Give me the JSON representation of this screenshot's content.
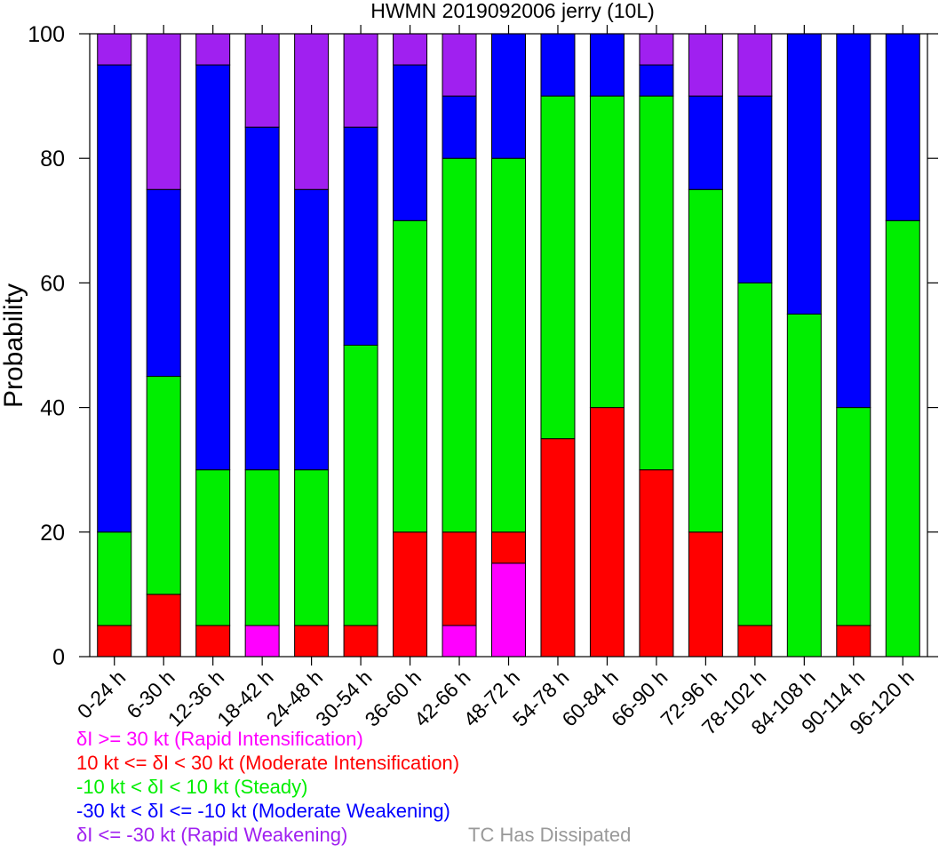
{
  "chart_data": {
    "type": "bar",
    "stacked": true,
    "title": "HWMN 2019092006 jerry (10L)",
    "ylabel": "Probability",
    "xlabel": "",
    "ylim": [
      0,
      100
    ],
    "yticks": [
      "0",
      "20",
      "40",
      "60",
      "80",
      "100"
    ],
    "categories": [
      "0-24 h",
      "6-30 h",
      "12-36 h",
      "18-42 h",
      "24-48 h",
      "30-54 h",
      "36-60 h",
      "42-66 h",
      "48-72 h",
      "54-78 h",
      "60-84 h",
      "66-90 h",
      "72-96 h",
      "78-102 h",
      "84-108 h",
      "90-114 h",
      "96-120 h"
    ],
    "series": [
      {
        "name": "δI >= 30 kt (Rapid Intensification)",
        "color": "#ff00ff",
        "values": [
          0,
          0,
          0,
          5,
          0,
          0,
          0,
          5,
          15,
          0,
          0,
          0,
          0,
          0,
          0,
          0,
          0
        ]
      },
      {
        "name": "10 kt <= δI < 30 kt (Moderate Intensification)",
        "color": "#ff0000",
        "values": [
          5,
          10,
          5,
          0,
          5,
          5,
          20,
          15,
          5,
          35,
          40,
          30,
          20,
          5,
          0,
          5,
          0
        ]
      },
      {
        "name": "-10 kt < δI < 10 kt (Steady)",
        "color": "#00ee00",
        "values": [
          15,
          35,
          25,
          25,
          25,
          45,
          50,
          60,
          60,
          55,
          50,
          60,
          55,
          55,
          55,
          35,
          70
        ]
      },
      {
        "name": "-30 kt < δI <= -10 kt (Moderate Weakening)",
        "color": "#0000ff",
        "values": [
          75,
          30,
          65,
          55,
          45,
          35,
          25,
          10,
          20,
          10,
          10,
          5,
          15,
          30,
          45,
          60,
          30
        ]
      },
      {
        "name": "δI <= -30 kt (Rapid Weakening)",
        "color": "#a020f0",
        "values": [
          5,
          25,
          5,
          15,
          25,
          15,
          5,
          10,
          0,
          0,
          0,
          5,
          10,
          10,
          0,
          0,
          0
        ]
      }
    ],
    "legend_extra": {
      "text": "TC Has Dissipated",
      "color": "#999999"
    },
    "grid": false,
    "legend_position": "bottom"
  }
}
